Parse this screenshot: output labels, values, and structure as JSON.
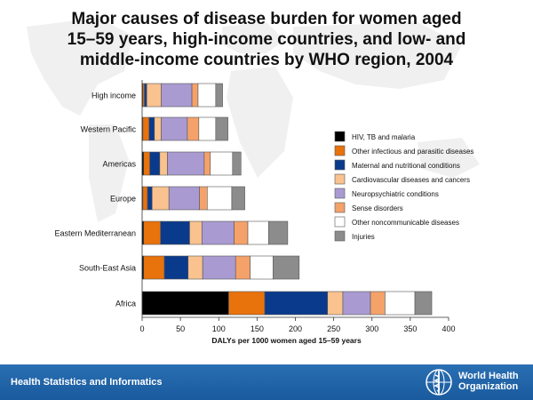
{
  "title_lines": [
    "Major causes of disease burden for women aged",
    "15–59 years, high-income countries, and low- and",
    "middle-income countries by WHO region, 2004"
  ],
  "footer": {
    "left_text": "Health Statistics and Informatics",
    "org_line1": "World Health",
    "org_line2": "Organization"
  },
  "colors": {
    "HIV, TB and malaria": "#000000",
    "Other infectious and parasitic diseases": "#e8720c",
    "Maternal and nutritional conditions": "#0a3a8c",
    "Cardiovascular diseases and cancers": "#f9c28f",
    "Neuropsychiatric conditions": "#a99bd1",
    "Sense disorders": "#f4a26a",
    "Other noncommunicable diseases": "#ffffff",
    "Injuries": "#8c8c8c"
  },
  "chart_data": {
    "type": "bar",
    "orientation": "horizontal",
    "stacked": true,
    "categories": [
      "High income",
      "Western Pacific",
      "Americas",
      "Europe",
      "Eastern Mediterranean",
      "South-East Asia",
      "Africa"
    ],
    "series": [
      {
        "name": "HIV, TB and malaria",
        "values": [
          1,
          1,
          2,
          1,
          2,
          2,
          113
        ]
      },
      {
        "name": "Other infectious and parasitic diseases",
        "values": [
          2,
          8,
          8,
          6,
          22,
          27,
          47
        ]
      },
      {
        "name": "Maternal and nutritional conditions",
        "values": [
          3,
          7,
          13,
          6,
          38,
          31,
          82
        ]
      },
      {
        "name": "Cardiovascular diseases and cancers",
        "values": [
          19,
          9,
          10,
          22,
          16,
          19,
          20
        ]
      },
      {
        "name": "Neuropsychiatric conditions",
        "values": [
          40,
          34,
          48,
          40,
          42,
          43,
          36
        ]
      },
      {
        "name": "Sense disorders",
        "values": [
          8,
          15,
          8,
          10,
          18,
          19,
          19
        ]
      },
      {
        "name": "Other noncommunicable diseases",
        "values": [
          23,
          22,
          29,
          32,
          27,
          30,
          39
        ]
      },
      {
        "name": "Injuries",
        "values": [
          9,
          16,
          11,
          17,
          25,
          34,
          22
        ]
      }
    ],
    "xlabel": "DALYs per 1000 women aged 15–59 years",
    "ylabel": "",
    "xlim": [
      0,
      400
    ],
    "xticks": [
      0,
      50,
      100,
      150,
      200,
      250,
      300,
      350,
      400
    ],
    "legend_position": "right",
    "grid": false
  }
}
